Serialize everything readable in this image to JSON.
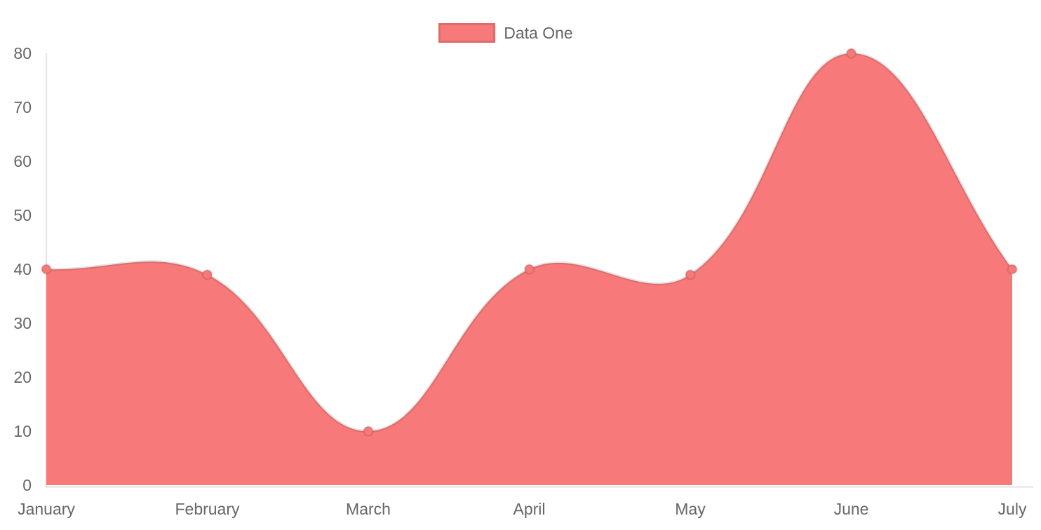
{
  "legend": {
    "label": "Data One"
  },
  "colors": {
    "series_fill": "#f87979",
    "series_border": "rgba(0,0,0,0.1)",
    "axis_line": "rgba(0,0,0,0.09)",
    "tick_text": "#666666",
    "background": "#ffffff"
  },
  "chart_data": {
    "type": "area",
    "title": "",
    "categories": [
      "January",
      "February",
      "March",
      "April",
      "May",
      "June",
      "July"
    ],
    "series": [
      {
        "name": "Data One",
        "values": [
          40,
          39,
          10,
          40,
          39,
          80,
          40
        ]
      }
    ],
    "xlabel": "",
    "ylabel": "",
    "ylim": [
      0,
      80
    ],
    "yticks": [
      0,
      10,
      20,
      30,
      40,
      50,
      60,
      70,
      80
    ],
    "grid": false,
    "legend_position": "top-center",
    "line_tension": 0.4,
    "point_style": "circle"
  }
}
